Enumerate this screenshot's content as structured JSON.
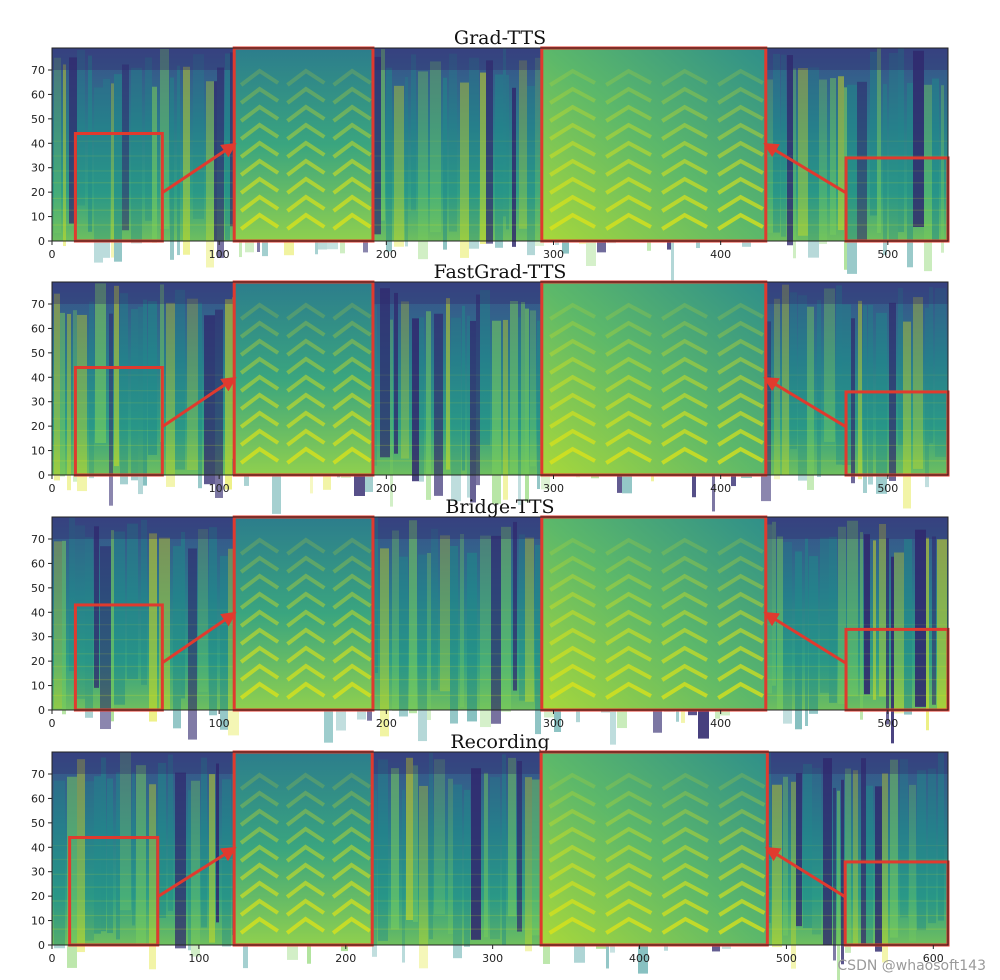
{
  "chart_data": [
    {
      "type": "heatmap",
      "title": "Grad-TTS",
      "xlim": [
        0,
        536
      ],
      "ylim": [
        0,
        79
      ],
      "xticks": [
        0,
        100,
        200,
        300,
        400,
        500
      ],
      "yticks": [
        0,
        10,
        20,
        30,
        40,
        50,
        60,
        70
      ],
      "zoom_regions": [
        {
          "source_x": [
            14,
            66
          ],
          "source_y": [
            0,
            44
          ],
          "inset_x": [
            109,
            192
          ]
        },
        {
          "source_x": [
            475,
            536
          ],
          "source_y": [
            0,
            34
          ],
          "inset_x": [
            293,
            427
          ]
        }
      ]
    },
    {
      "type": "heatmap",
      "title": "FastGrad-TTS",
      "xlim": [
        0,
        536
      ],
      "ylim": [
        0,
        79
      ],
      "xticks": [
        0,
        100,
        200,
        300,
        400,
        500
      ],
      "yticks": [
        0,
        10,
        20,
        30,
        40,
        50,
        60,
        70
      ],
      "zoom_regions": [
        {
          "source_x": [
            14,
            66
          ],
          "source_y": [
            0,
            44
          ],
          "inset_x": [
            109,
            192
          ]
        },
        {
          "source_x": [
            475,
            536
          ],
          "source_y": [
            0,
            34
          ],
          "inset_x": [
            293,
            427
          ]
        }
      ]
    },
    {
      "type": "heatmap",
      "title": "Bridge-TTS",
      "xlim": [
        0,
        536
      ],
      "ylim": [
        0,
        79
      ],
      "xticks": [
        0,
        100,
        200,
        300,
        400,
        500
      ],
      "yticks": [
        0,
        10,
        20,
        30,
        40,
        50,
        60,
        70
      ],
      "zoom_regions": [
        {
          "source_x": [
            14,
            66
          ],
          "source_y": [
            0,
            43
          ],
          "inset_x": [
            109,
            192
          ]
        },
        {
          "source_x": [
            475,
            536
          ],
          "source_y": [
            0,
            33
          ],
          "inset_x": [
            293,
            427
          ]
        }
      ]
    },
    {
      "type": "heatmap",
      "title": "Recording",
      "xlim": [
        0,
        610
      ],
      "ylim": [
        0,
        79
      ],
      "xticks": [
        0,
        100,
        200,
        300,
        400,
        500,
        600
      ],
      "yticks": [
        0,
        10,
        20,
        30,
        40,
        50,
        60,
        70
      ],
      "zoom_regions": [
        {
          "source_x": [
            12,
            72
          ],
          "source_y": [
            0,
            44
          ],
          "inset_x": [
            124,
            218
          ]
        },
        {
          "source_x": [
            540,
            610
          ],
          "source_y": [
            0,
            34
          ],
          "inset_x": [
            333,
            487
          ]
        }
      ]
    }
  ],
  "colors": {
    "highlight": "#e03a2e",
    "low": "#30286e",
    "mid": "#238a8d",
    "high": "#dde318"
  },
  "watermark": "CSDN @whaosoft143"
}
